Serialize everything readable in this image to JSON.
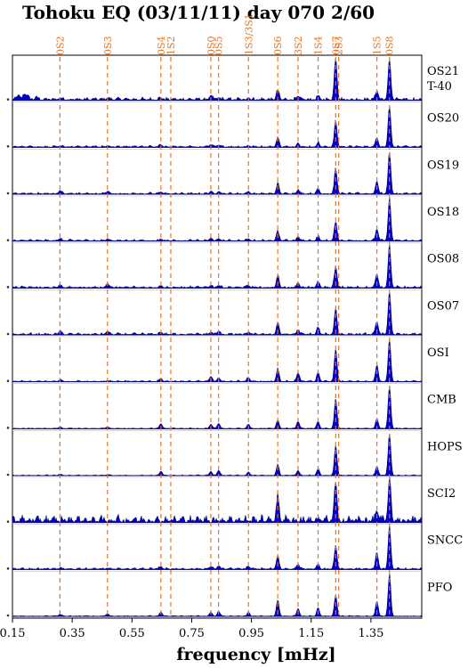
{
  "chart_data": {
    "type": "area",
    "title": "Tohoku EQ (03/11/11) day 070  2/60",
    "xlabel": "frequency [mHz]",
    "xlim": [
      0.15,
      1.52
    ],
    "xticks": [
      "0.15",
      "0.35",
      "0.55",
      "0.75",
      "0.95",
      "1.15",
      "1.35"
    ],
    "mode_lines": [
      {
        "label": "0S2",
        "freq": 0.309
      },
      {
        "label": "0S3",
        "freq": 0.468
      },
      {
        "label": "0S4",
        "freq": 0.647
      },
      {
        "label": "1S2",
        "freq": 0.68
      },
      {
        "label": "0S0",
        "freq": 0.814
      },
      {
        "label": "0S5",
        "freq": 0.84
      },
      {
        "label": "1S3/3S1",
        "freq": 0.94
      },
      {
        "label": "0S6",
        "freq": 1.038
      },
      {
        "label": "3S2",
        "freq": 1.106
      },
      {
        "label": "1S4",
        "freq": 1.173
      },
      {
        "label": "0S7",
        "freq": 1.232
      },
      {
        "label": "2S3",
        "freq": 1.242
      },
      {
        "label": "1S5",
        "freq": 1.37
      },
      {
        "label": "0S8",
        "freq": 1.412
      }
    ],
    "series": [
      {
        "name": "OS21",
        "subname": "T-40",
        "noise": 0.05,
        "peaks": [
          [
            0.17,
            0.12
          ],
          [
            0.19,
            0.12
          ],
          [
            0.2,
            0.1
          ],
          [
            0.23,
            0.06
          ],
          [
            0.309,
            0.04
          ],
          [
            0.468,
            0.04
          ],
          [
            0.647,
            0.05
          ],
          [
            0.814,
            0.1
          ],
          [
            0.84,
            0.05
          ],
          [
            0.94,
            0.05
          ],
          [
            1.038,
            0.22
          ],
          [
            1.106,
            0.08
          ],
          [
            1.173,
            0.07
          ],
          [
            1.232,
            1.0
          ],
          [
            1.37,
            0.22
          ],
          [
            1.412,
            0.96
          ]
        ]
      },
      {
        "name": "OS20",
        "noise": 0.03,
        "peaks": [
          [
            0.309,
            0.02
          ],
          [
            0.468,
            0.03
          ],
          [
            0.647,
            0.05
          ],
          [
            0.814,
            0.06
          ],
          [
            0.84,
            0.04
          ],
          [
            0.94,
            0.03
          ],
          [
            1.038,
            0.22
          ],
          [
            1.106,
            0.1
          ],
          [
            1.173,
            0.1
          ],
          [
            1.232,
            0.62
          ],
          [
            1.37,
            0.22
          ],
          [
            1.412,
            0.98
          ]
        ]
      },
      {
        "name": "OS19",
        "noise": 0.03,
        "peaks": [
          [
            0.309,
            0.08
          ],
          [
            0.468,
            0.06
          ],
          [
            0.647,
            0.05
          ],
          [
            0.814,
            0.06
          ],
          [
            0.84,
            0.06
          ],
          [
            0.94,
            0.05
          ],
          [
            1.038,
            0.24
          ],
          [
            1.106,
            0.1
          ],
          [
            1.173,
            0.12
          ],
          [
            1.232,
            0.6
          ],
          [
            1.37,
            0.3
          ],
          [
            1.412,
            1.0
          ]
        ]
      },
      {
        "name": "OS18",
        "noise": 0.03,
        "peaks": [
          [
            0.309,
            0.05
          ],
          [
            0.468,
            0.04
          ],
          [
            0.647,
            0.04
          ],
          [
            0.814,
            0.06
          ],
          [
            0.84,
            0.05
          ],
          [
            0.94,
            0.04
          ],
          [
            1.038,
            0.22
          ],
          [
            1.106,
            0.1
          ],
          [
            1.173,
            0.1
          ],
          [
            1.232,
            0.45
          ],
          [
            1.37,
            0.28
          ],
          [
            1.412,
            1.0
          ]
        ]
      },
      {
        "name": "OS08",
        "noise": 0.035,
        "peaks": [
          [
            0.309,
            0.07
          ],
          [
            0.468,
            0.1
          ],
          [
            0.647,
            0.05
          ],
          [
            0.814,
            0.06
          ],
          [
            0.84,
            0.06
          ],
          [
            0.94,
            0.05
          ],
          [
            1.038,
            0.28
          ],
          [
            1.106,
            0.12
          ],
          [
            1.173,
            0.14
          ],
          [
            1.232,
            0.5
          ],
          [
            1.37,
            0.32
          ],
          [
            1.412,
            1.0
          ]
        ]
      },
      {
        "name": "OS07",
        "noise": 0.035,
        "peaks": [
          [
            0.309,
            0.08
          ],
          [
            0.468,
            0.08
          ],
          [
            0.647,
            0.06
          ],
          [
            0.814,
            0.06
          ],
          [
            0.84,
            0.08
          ],
          [
            0.94,
            0.06
          ],
          [
            1.038,
            0.28
          ],
          [
            1.106,
            0.12
          ],
          [
            1.173,
            0.16
          ],
          [
            1.232,
            0.62
          ],
          [
            1.37,
            0.32
          ],
          [
            1.412,
            1.0
          ]
        ]
      },
      {
        "name": "OSI",
        "noise": 0.025,
        "peaks": [
          [
            0.309,
            0.04
          ],
          [
            0.468,
            0.02
          ],
          [
            0.647,
            0.08
          ],
          [
            0.814,
            0.12
          ],
          [
            0.84,
            0.1
          ],
          [
            0.94,
            0.1
          ],
          [
            1.038,
            0.3
          ],
          [
            1.106,
            0.22
          ],
          [
            1.173,
            0.22
          ],
          [
            1.232,
            0.78
          ],
          [
            1.37,
            0.4
          ],
          [
            1.412,
            1.0
          ]
        ]
      },
      {
        "name": "CMB",
        "noise": 0.015,
        "peaks": [
          [
            0.309,
            0.04
          ],
          [
            0.468,
            0.04
          ],
          [
            0.647,
            0.12
          ],
          [
            0.814,
            0.1
          ],
          [
            0.84,
            0.12
          ],
          [
            0.94,
            0.1
          ],
          [
            1.038,
            0.2
          ],
          [
            1.106,
            0.18
          ],
          [
            1.173,
            0.16
          ],
          [
            1.232,
            0.7
          ],
          [
            1.37,
            0.24
          ],
          [
            1.412,
            1.0
          ]
        ]
      },
      {
        "name": "HOPS",
        "noise": 0.015,
        "peaks": [
          [
            0.309,
            0.03
          ],
          [
            0.468,
            0.02
          ],
          [
            0.647,
            0.1
          ],
          [
            0.814,
            0.1
          ],
          [
            0.84,
            0.12
          ],
          [
            0.94,
            0.08
          ],
          [
            1.038,
            0.25
          ],
          [
            1.106,
            0.12
          ],
          [
            1.173,
            0.16
          ],
          [
            1.232,
            0.7
          ],
          [
            1.37,
            0.22
          ],
          [
            1.412,
            1.0
          ]
        ]
      },
      {
        "name": "SCI2",
        "noise": 0.12,
        "peaks": [
          [
            1.038,
            0.55
          ],
          [
            1.232,
            0.9
          ],
          [
            1.37,
            0.25
          ],
          [
            1.412,
            1.0
          ]
        ]
      },
      {
        "name": "SNCC",
        "noise": 0.03,
        "peaks": [
          [
            0.309,
            0.02
          ],
          [
            0.468,
            0.02
          ],
          [
            0.647,
            0.06
          ],
          [
            0.814,
            0.06
          ],
          [
            0.84,
            0.08
          ],
          [
            0.94,
            0.06
          ],
          [
            1.038,
            0.3
          ],
          [
            1.106,
            0.12
          ],
          [
            1.173,
            0.12
          ],
          [
            1.232,
            0.56
          ],
          [
            1.37,
            0.4
          ],
          [
            1.412,
            1.0
          ]
        ]
      },
      {
        "name": "PFO",
        "noise": 0.015,
        "peaks": [
          [
            0.309,
            0.05
          ],
          [
            0.468,
            0.06
          ],
          [
            0.647,
            0.1
          ],
          [
            0.814,
            0.1
          ],
          [
            0.84,
            0.12
          ],
          [
            0.94,
            0.1
          ],
          [
            1.038,
            0.38
          ],
          [
            1.106,
            0.18
          ],
          [
            1.173,
            0.2
          ],
          [
            1.232,
            0.5
          ],
          [
            1.37,
            0.36
          ],
          [
            1.412,
            1.0
          ]
        ]
      }
    ],
    "colors": {
      "fill": "#0000cc",
      "stroke": "#00007a",
      "mode_line": "#e8741e",
      "axis": "#000000",
      "divider": "#bbbbbb"
    }
  }
}
